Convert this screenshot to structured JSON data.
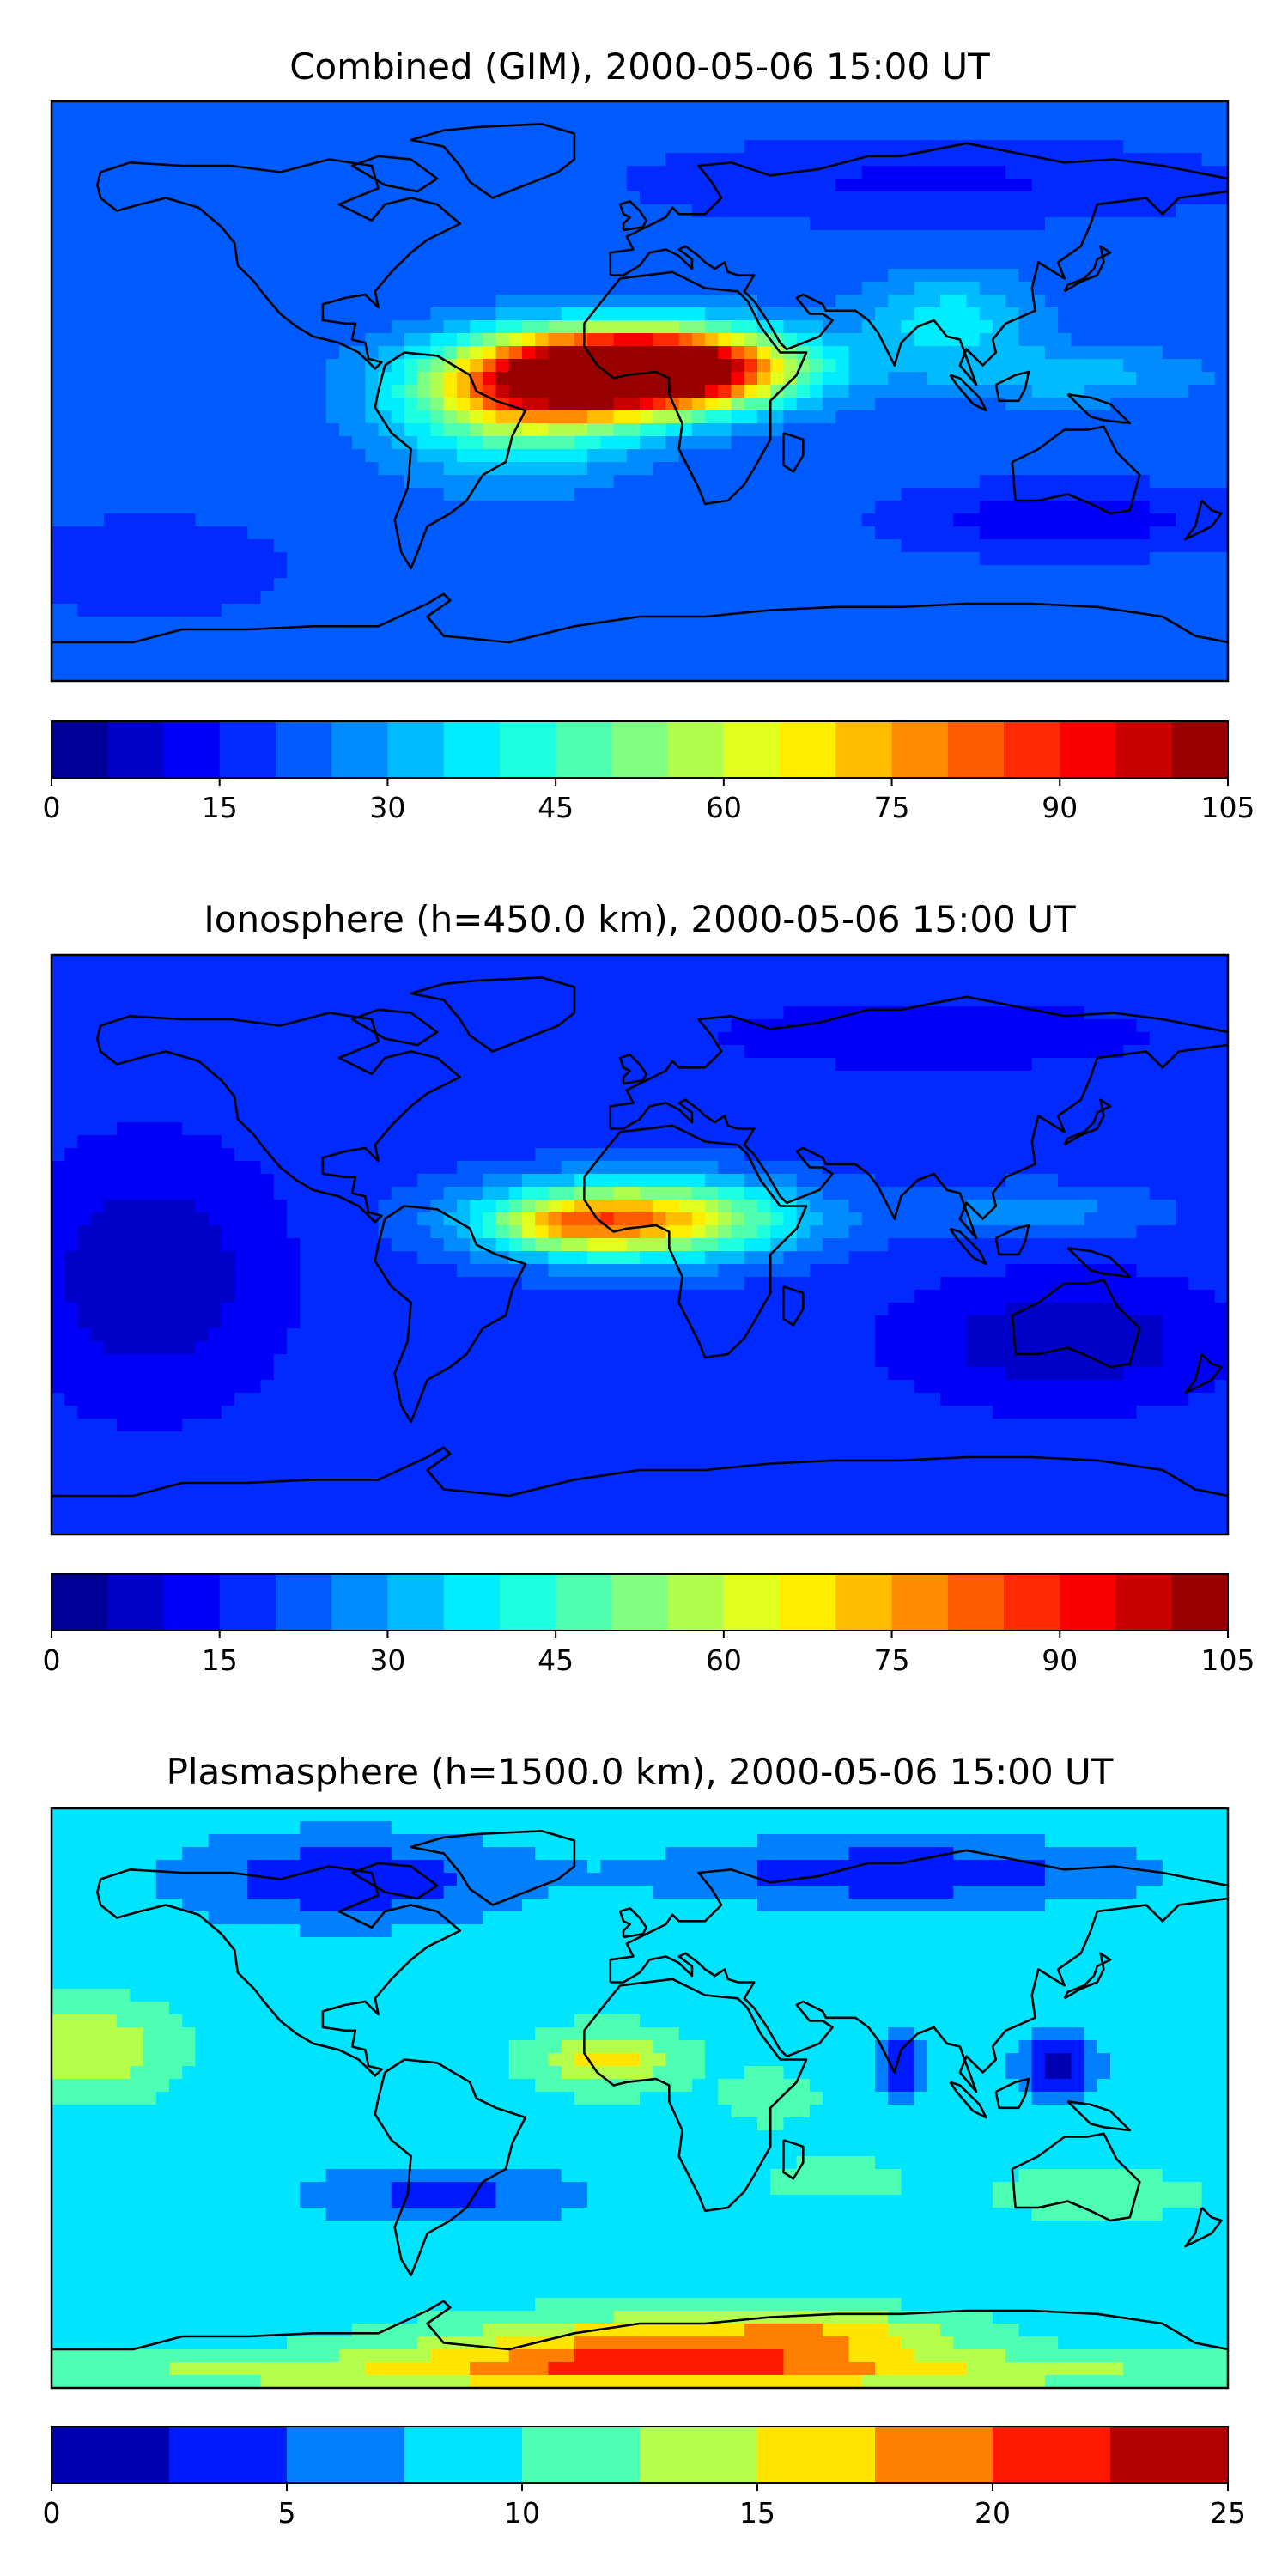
{
  "chart_data": [
    {
      "type": "heatmap",
      "title": "Combined (GIM), 2000-05-06 15:00 UT",
      "xlabel": "",
      "ylabel": "",
      "colorbar": {
        "ticks": [
          "0",
          "15",
          "30",
          "45",
          "60",
          "75",
          "90",
          "105"
        ],
        "range": [
          0,
          105
        ],
        "levels": 21
      },
      "background_value": 22,
      "blobs": [
        {
          "lon": 5,
          "lat": 8,
          "rlon": 42,
          "rlat": 12,
          "value": 78
        },
        {
          "lon": -28,
          "lat": 2,
          "rlon": 38,
          "rlat": 14,
          "value": 52
        },
        {
          "lon": 5,
          "lat": 4,
          "rlon": 34,
          "rlat": 10,
          "value": 26
        },
        {
          "lon": 0,
          "lat": 6,
          "rlon": 25,
          "rlat": 7,
          "value": 12
        },
        {
          "lon": -40,
          "lat": -10,
          "rlon": 35,
          "rlat": 18,
          "value": 18
        },
        {
          "lon": 130,
          "lat": 5,
          "rlon": 38,
          "rlat": 8,
          "value": 12
        },
        {
          "lon": 95,
          "lat": 22,
          "rlon": 25,
          "rlat": 14,
          "value": 16
        },
        {
          "lon": 130,
          "lat": -40,
          "rlon": 45,
          "rlat": 10,
          "value": -12
        },
        {
          "lon": 90,
          "lat": 65,
          "rlon": 80,
          "rlat": 12,
          "value": -8
        },
        {
          "lon": -150,
          "lat": -55,
          "rlon": 40,
          "rlat": 15,
          "value": -6
        }
      ]
    },
    {
      "type": "heatmap",
      "title": "Ionosphere  (h=450.0 km), 2000-05-06 15:00 UT",
      "xlabel": "",
      "ylabel": "",
      "colorbar": {
        "ticks": [
          "0",
          "15",
          "30",
          "45",
          "60",
          "75",
          "90",
          "105"
        ],
        "range": [
          0,
          105
        ],
        "levels": 21
      },
      "background_value": 18,
      "blobs": [
        {
          "lon": 0,
          "lat": 8,
          "rlon": 45,
          "rlat": 12,
          "value": 55
        },
        {
          "lon": -22,
          "lat": 6,
          "rlon": 25,
          "rlat": 8,
          "value": 20
        },
        {
          "lon": -150,
          "lat": -10,
          "rlon": 40,
          "rlat": 40,
          "value": -12
        },
        {
          "lon": 130,
          "lat": -30,
          "rlon": 50,
          "rlat": 20,
          "value": -12
        },
        {
          "lon": 120,
          "lat": 10,
          "rlon": 35,
          "rlat": 8,
          "value": 10
        },
        {
          "lon": 90,
          "lat": 65,
          "rlon": 80,
          "rlat": 12,
          "value": -6
        }
      ]
    },
    {
      "type": "heatmap",
      "title": "Plasmasphere (h=1500.0 km), 2000-05-06 15:00 UT",
      "xlabel": "",
      "ylabel": "",
      "colorbar": {
        "ticks": [
          "0",
          "5",
          "10",
          "15",
          "20",
          "25"
        ],
        "range": [
          0,
          25
        ],
        "levels": 10
      },
      "background_value": 9,
      "blobs": [
        {
          "lon": 10,
          "lat": -78,
          "rlon": 70,
          "rlat": 10,
          "value": 10
        },
        {
          "lon": 0,
          "lat": -85,
          "rlon": 200,
          "rlat": 6,
          "value": 6
        },
        {
          "lon": 60,
          "lat": -72,
          "rlon": 35,
          "rlat": 6,
          "value": 4
        },
        {
          "lon": -170,
          "lat": 15,
          "rlon": 25,
          "rlat": 14,
          "value": 6
        },
        {
          "lon": -10,
          "lat": 12,
          "rlon": 22,
          "rlat": 9,
          "value": 7
        },
        {
          "lon": 40,
          "lat": 0,
          "rlon": 15,
          "rlat": 8,
          "value": 3
        },
        {
          "lon": 80,
          "lat": 10,
          "rlon": 8,
          "rlat": 10,
          "value": -7
        },
        {
          "lon": 128,
          "lat": 10,
          "rlon": 12,
          "rlat": 10,
          "value": -8
        },
        {
          "lon": 80,
          "lat": 70,
          "rlon": 70,
          "rlat": 10,
          "value": -6
        },
        {
          "lon": -90,
          "lat": 68,
          "rlon": 50,
          "rlat": 14,
          "value": -6
        },
        {
          "lon": -60,
          "lat": -30,
          "rlon": 40,
          "rlat": 9,
          "value": -5
        },
        {
          "lon": 140,
          "lat": -30,
          "rlon": 30,
          "rlat": 8,
          "value": 3
        },
        {
          "lon": 60,
          "lat": -25,
          "rlon": 25,
          "rlat": 8,
          "value": 2
        }
      ]
    }
  ]
}
